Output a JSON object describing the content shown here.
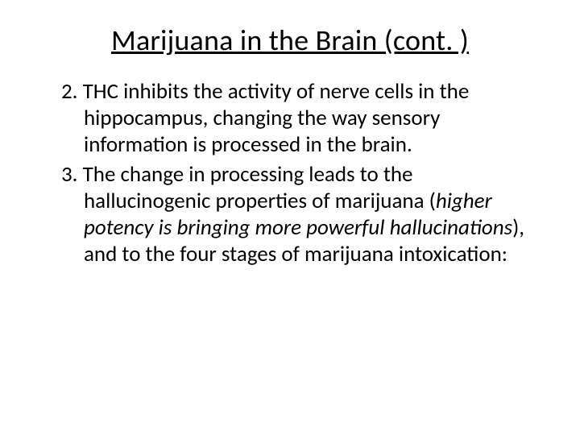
{
  "slide": {
    "title": "Marijuana in the Brain (cont. )",
    "title_fontsize": 36,
    "title_underline": true,
    "title_align": "center",
    "body_fontsize": 27,
    "text_color": "#000000",
    "background_color": "#ffffff",
    "items": [
      {
        "marker": "2.",
        "runs": [
          {
            "text": "THC inhibits the activity of nerve cells in the hippocampus, changing the way sensory information is processed in the brain.",
            "italic": false
          }
        ]
      },
      {
        "marker": "3.",
        "runs": [
          {
            "text": "The change in processing leads to the hallucinogenic properties of marijuana (",
            "italic": false
          },
          {
            "text": "higher potency is bringing more powerful hallucinations",
            "italic": true
          },
          {
            "text": "), and to the four stages of marijuana intoxication:",
            "italic": false
          }
        ]
      }
    ]
  }
}
